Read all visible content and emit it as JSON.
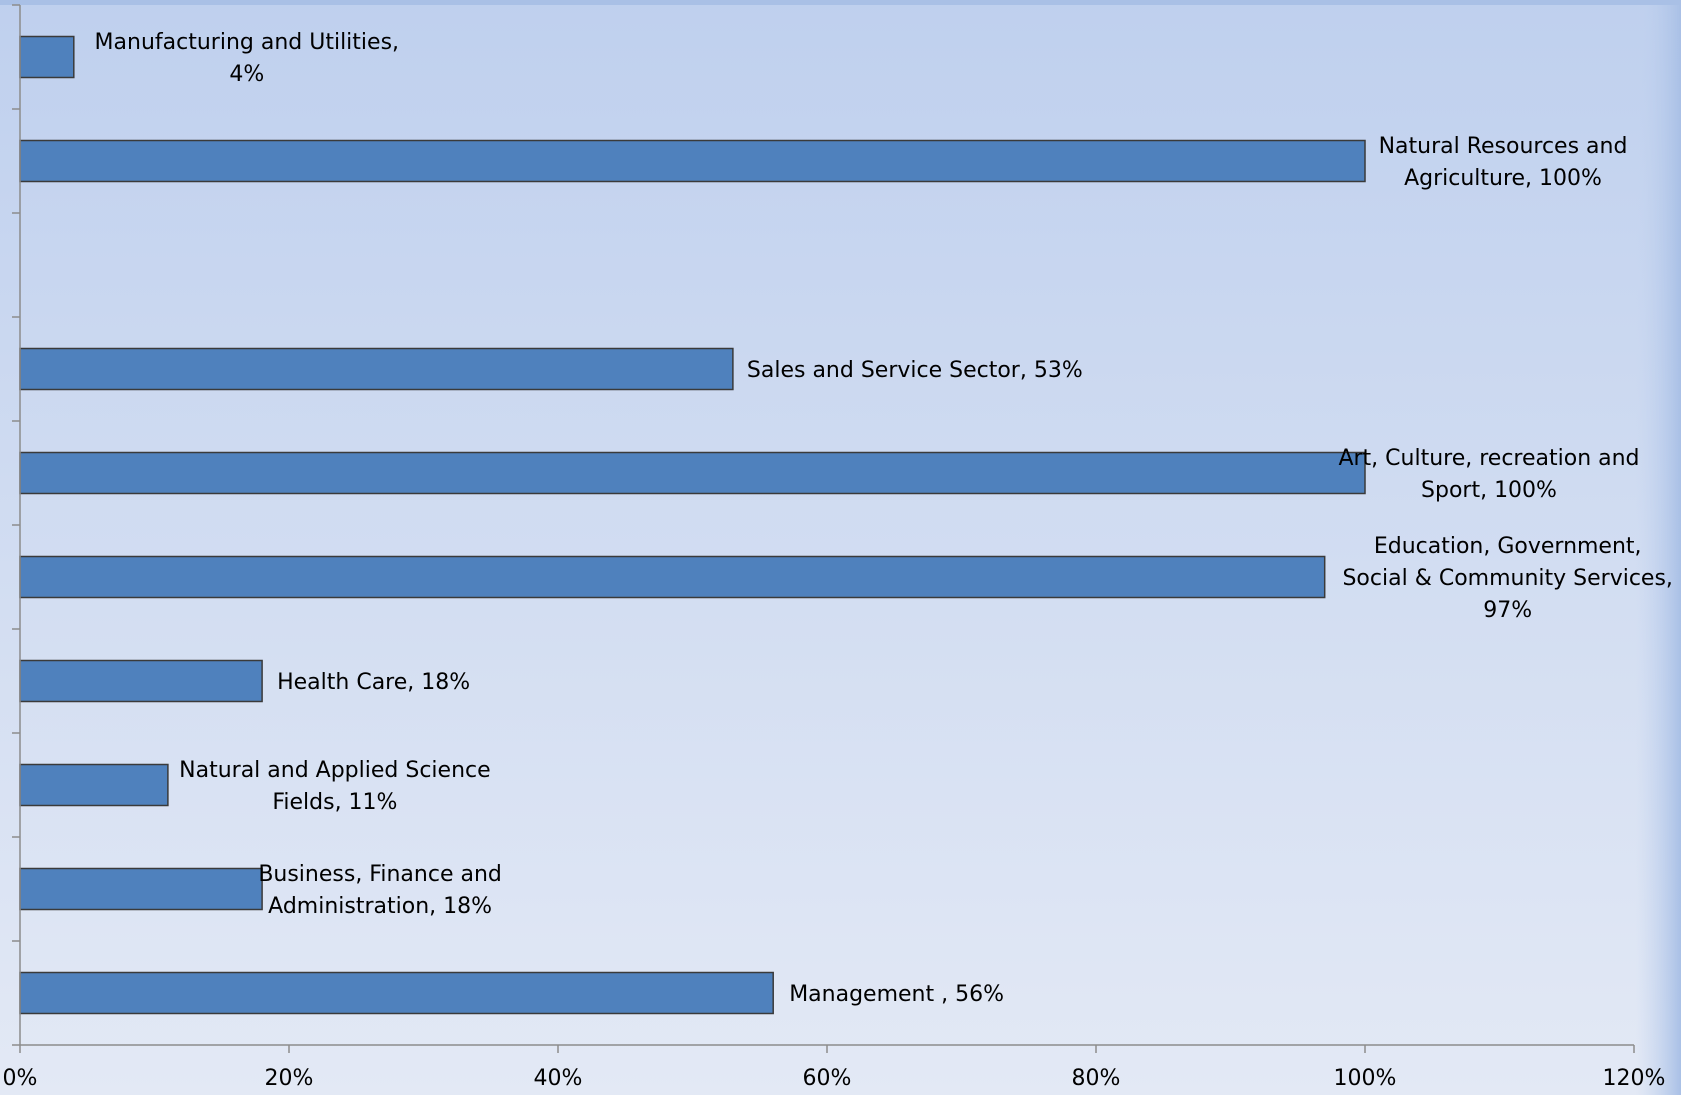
{
  "chart_data": {
    "type": "bar",
    "orientation": "horizontal",
    "categories": [
      "Management",
      "Business, Finance and Administration",
      "Natural and Applied Science Fields",
      "Health Care",
      "Education, Government, Social & Community Services",
      "Art, Culture, recreation and Sport",
      "Sales and Service Sector",
      "",
      "Natural Resources and Agriculture",
      "Manufacturing and Utilities"
    ],
    "values": [
      56,
      18,
      11,
      18,
      97,
      100,
      53,
      null,
      100,
      4
    ],
    "data_labels": [
      [
        "Management , 56%"
      ],
      [
        "Business, Finance and",
        "Administration, 18%"
      ],
      [
        "Natural and Applied Science",
        "Fields, 11%"
      ],
      [
        "Health Care, 18%"
      ],
      [
        "Education, Government,",
        "Social & Community Services,",
        "97%"
      ],
      [
        "Art, Culture, recreation and",
        "Sport, 100%"
      ],
      [
        "Sales and Service Sector, 53%"
      ],
      [],
      [
        "Natural Resources and",
        "Agriculture, 100%"
      ],
      [
        "Manufacturing and Utilities,",
        "4%"
      ]
    ],
    "x_ticks": [
      "0%",
      "20%",
      "40%",
      "60%",
      "80%",
      "100%",
      "120%"
    ],
    "xlim": [
      0,
      120
    ],
    "title": "",
    "xlabel": "",
    "ylabel": "",
    "grid": false,
    "legend": "none",
    "colors": {
      "bar_fill": "#4F81BD",
      "bar_stroke": "#3a3a3a",
      "plot_bg_top": "#bfd0ee",
      "plot_bg_bottom": "#e3e9f5",
      "frame_top": "#a9c0e6",
      "axis": "#8c8c8c"
    }
  }
}
